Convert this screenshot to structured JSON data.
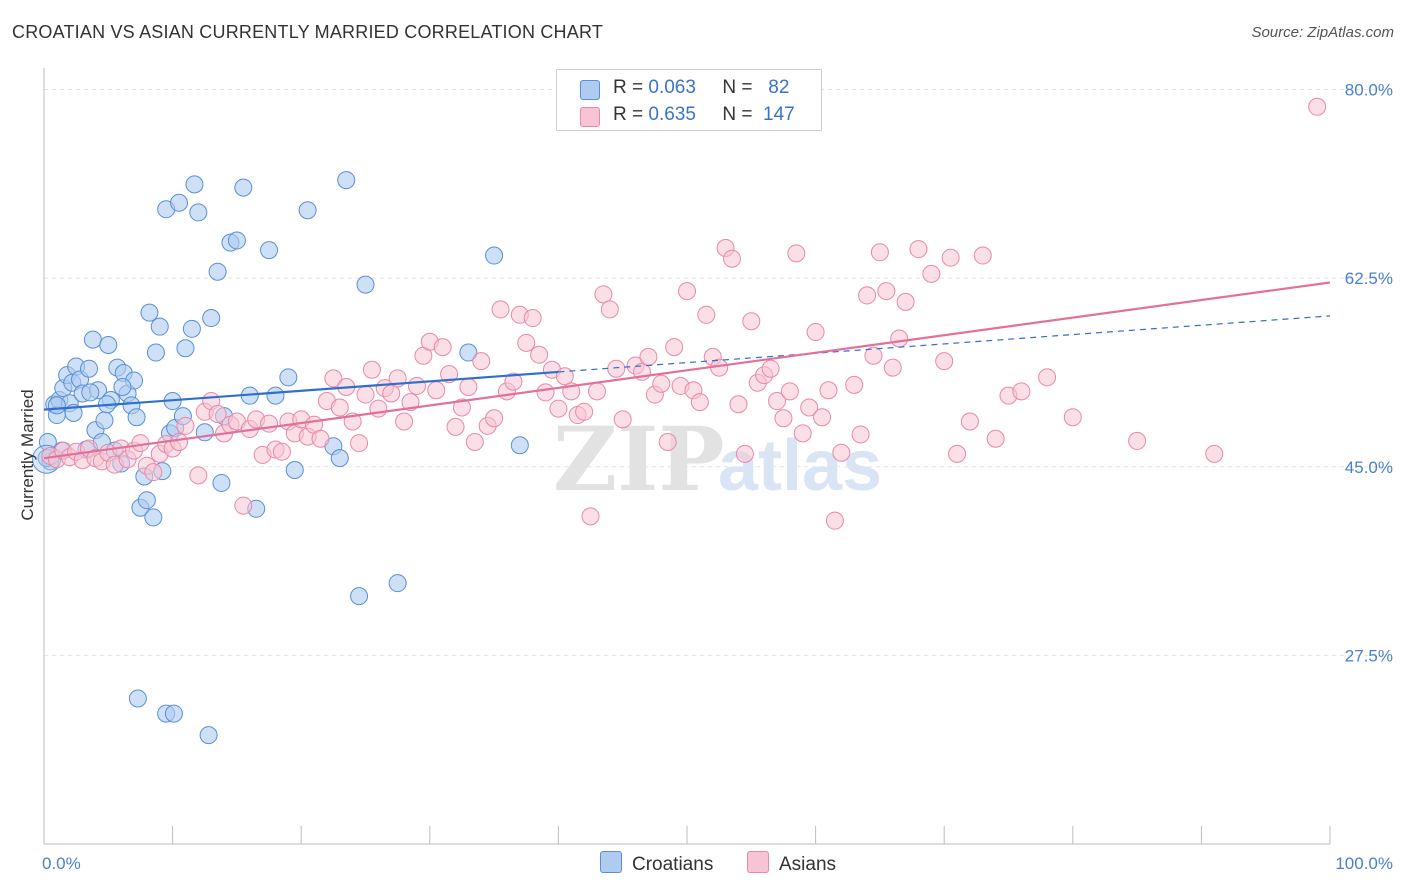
{
  "header": {
    "title": "CROATIAN VS ASIAN CURRENTLY MARRIED CORRELATION CHART",
    "source": "Source: ZipAtlas.com"
  },
  "legend": {
    "rows": [
      {
        "r_label": "R =",
        "r_value": "0.063",
        "n_label": "N =",
        "n_value": "82"
      },
      {
        "r_label": "R =",
        "r_value": "0.635",
        "n_label": "N =",
        "n_value": "147"
      }
    ],
    "bottom": [
      "Croatians",
      "Asians"
    ]
  },
  "colors": {
    "croatian_fill": "#aecbf0",
    "croatian_stroke": "#5b8fd6",
    "croatian_line": "#2f6fce",
    "asian_fill": "#f6c4d4",
    "asian_stroke": "#e889a8",
    "asian_line": "#e2709a",
    "tick_text": "#4a7fd0",
    "grid": "#e3e3e3"
  },
  "chart_data": {
    "type": "scatter",
    "title": "CROATIAN VS ASIAN CURRENTLY MARRIED CORRELATION CHART",
    "xlabel": "",
    "ylabel": "Currently Married",
    "xlim": [
      0,
      100
    ],
    "ylim": [
      10,
      82
    ],
    "x_tick_labels": [
      "0.0%",
      "100.0%"
    ],
    "y_ticks": [
      27.5,
      45.0,
      62.5,
      80.0
    ],
    "y_tick_labels": [
      "27.5%",
      "45.0%",
      "62.5%",
      "80.0%"
    ],
    "watermark": "ZIPatlas",
    "series": [
      {
        "name": "Croatians",
        "R": 0.063,
        "N": 82,
        "trend": {
          "x0": 0,
          "y0": 50.3,
          "x1": 40,
          "y1": 53.8,
          "dashed_to_x": 100,
          "dashed_to_y": 59.0
        },
        "points": [
          [
            0.3,
            47.3
          ],
          [
            0.5,
            45.5
          ],
          [
            0.8,
            50.8
          ],
          [
            1,
            49.8
          ],
          [
            1.2,
            51.2
          ],
          [
            1.5,
            52.3
          ],
          [
            1.8,
            53.5
          ],
          [
            2,
            50.9
          ],
          [
            2.2,
            52.8
          ],
          [
            2.5,
            54.3
          ],
          [
            2.8,
            53.1
          ],
          [
            3,
            51.8
          ],
          [
            3.3,
            46.6
          ],
          [
            3.5,
            54.1
          ],
          [
            3.8,
            56.8
          ],
          [
            4,
            48.4
          ],
          [
            4.2,
            52.1
          ],
          [
            4.5,
            47.3
          ],
          [
            4.7,
            49.3
          ],
          [
            5,
            56.3
          ],
          [
            5.2,
            51.2
          ],
          [
            5.5,
            46.5
          ],
          [
            5.7,
            54.2
          ],
          [
            6,
            45.3
          ],
          [
            6.2,
            53.7
          ],
          [
            6.5,
            51.8
          ],
          [
            6.8,
            50.7
          ],
          [
            7,
            53.0
          ],
          [
            7.2,
            49.6
          ],
          [
            7.5,
            41.2
          ],
          [
            7.8,
            44.1
          ],
          [
            8,
            41.9
          ],
          [
            8.2,
            59.3
          ],
          [
            8.5,
            40.3
          ],
          [
            8.7,
            55.6
          ],
          [
            9,
            58.0
          ],
          [
            9.2,
            44.6
          ],
          [
            9.5,
            68.9
          ],
          [
            9.8,
            48.1
          ],
          [
            10,
            51.1
          ],
          [
            10.2,
            48.6
          ],
          [
            10.5,
            69.5
          ],
          [
            10.8,
            49.7
          ],
          [
            11,
            56.0
          ],
          [
            11.5,
            57.8
          ],
          [
            11.7,
            71.2
          ],
          [
            12,
            68.6
          ],
          [
            12.5,
            48.2
          ],
          [
            13,
            58.8
          ],
          [
            13.5,
            63.1
          ],
          [
            13.8,
            43.5
          ],
          [
            14,
            49.7
          ],
          [
            14.5,
            65.8
          ],
          [
            15,
            66.0
          ],
          [
            15.5,
            70.9
          ],
          [
            16,
            51.6
          ],
          [
            16.5,
            41.1
          ],
          [
            17.5,
            65.1
          ],
          [
            18,
            51.6
          ],
          [
            19,
            53.3
          ],
          [
            19.5,
            44.7
          ],
          [
            20.5,
            68.8
          ],
          [
            22.5,
            46.9
          ],
          [
            23,
            45.8
          ],
          [
            23.5,
            71.6
          ],
          [
            24.5,
            33.0
          ],
          [
            25,
            61.9
          ],
          [
            27.5,
            34.2
          ],
          [
            33,
            55.6
          ],
          [
            35,
            64.6
          ],
          [
            37,
            47.0
          ],
          [
            7.3,
            23.5
          ],
          [
            9.5,
            22.1
          ],
          [
            10.1,
            22.1
          ],
          [
            12.8,
            20.1
          ],
          [
            1,
            50.7
          ],
          [
            2.3,
            50.0
          ],
          [
            3.6,
            51.9
          ],
          [
            4.9,
            50.8
          ],
          [
            6.1,
            52.4
          ],
          [
            0.2,
            45.8
          ],
          [
            1.4,
            46.5
          ]
        ]
      },
      {
        "name": "Asians",
        "R": 0.635,
        "N": 147,
        "trend": {
          "x0": 0,
          "y0": 45.8,
          "x1": 100,
          "y1": 62.1
        },
        "points": [
          [
            0.5,
            46.0
          ],
          [
            1,
            45.7
          ],
          [
            1.5,
            46.5
          ],
          [
            2,
            45.9
          ],
          [
            2.5,
            46.4
          ],
          [
            3,
            45.6
          ],
          [
            3.5,
            46.7
          ],
          [
            4,
            45.8
          ],
          [
            4.5,
            45.5
          ],
          [
            5,
            46.3
          ],
          [
            5.5,
            45.2
          ],
          [
            6,
            46.7
          ],
          [
            6.5,
            45.7
          ],
          [
            7,
            46.5
          ],
          [
            7.5,
            47.2
          ],
          [
            8,
            45.1
          ],
          [
            8.5,
            44.5
          ],
          [
            9,
            46.2
          ],
          [
            9.5,
            47.1
          ],
          [
            10,
            46.7
          ],
          [
            10.5,
            47.3
          ],
          [
            11,
            48.8
          ],
          [
            12,
            44.2
          ],
          [
            12.5,
            50.1
          ],
          [
            13,
            51.1
          ],
          [
            13.5,
            49.9
          ],
          [
            14,
            48.1
          ],
          [
            14.5,
            48.9
          ],
          [
            15,
            49.2
          ],
          [
            15.5,
            41.4
          ],
          [
            16,
            48.5
          ],
          [
            16.5,
            49.4
          ],
          [
            17,
            46.1
          ],
          [
            17.5,
            49.0
          ],
          [
            18,
            46.6
          ],
          [
            18.5,
            46.4
          ],
          [
            19,
            49.2
          ],
          [
            19.5,
            48.1
          ],
          [
            20,
            49.4
          ],
          [
            20.5,
            47.8
          ],
          [
            21,
            48.9
          ],
          [
            21.5,
            47.6
          ],
          [
            22,
            51.1
          ],
          [
            22.5,
            53.2
          ],
          [
            23,
            50.5
          ],
          [
            23.5,
            52.4
          ],
          [
            24,
            49.2
          ],
          [
            24.5,
            47.2
          ],
          [
            25,
            51.7
          ],
          [
            25.5,
            54.0
          ],
          [
            26,
            50.4
          ],
          [
            26.5,
            52.3
          ],
          [
            27,
            51.8
          ],
          [
            27.5,
            53.2
          ],
          [
            28,
            49.2
          ],
          [
            28.5,
            51.0
          ],
          [
            29,
            52.5
          ],
          [
            29.5,
            55.3
          ],
          [
            30,
            56.6
          ],
          [
            30.5,
            52.1
          ],
          [
            31,
            56.1
          ],
          [
            31.5,
            53.6
          ],
          [
            32,
            48.7
          ],
          [
            32.5,
            50.5
          ],
          [
            33,
            52.4
          ],
          [
            33.5,
            47.3
          ],
          [
            34,
            54.8
          ],
          [
            34.5,
            48.8
          ],
          [
            35,
            49.5
          ],
          [
            35.5,
            59.6
          ],
          [
            36,
            52.0
          ],
          [
            36.5,
            52.9
          ],
          [
            37,
            59.1
          ],
          [
            37.5,
            56.5
          ],
          [
            38,
            58.8
          ],
          [
            38.5,
            55.4
          ],
          [
            39,
            51.9
          ],
          [
            39.5,
            54.0
          ],
          [
            40,
            50.4
          ],
          [
            40.5,
            53.4
          ],
          [
            41,
            52.0
          ],
          [
            41.5,
            49.8
          ],
          [
            42,
            50.1
          ],
          [
            42.5,
            40.4
          ],
          [
            43,
            52.0
          ],
          [
            43.5,
            61.0
          ],
          [
            44,
            59.6
          ],
          [
            44.5,
            54.1
          ],
          [
            45,
            49.4
          ],
          [
            46,
            54.4
          ],
          [
            46.5,
            53.8
          ],
          [
            47,
            55.2
          ],
          [
            47.5,
            51.7
          ],
          [
            48,
            52.7
          ],
          [
            48.5,
            47.3
          ],
          [
            49,
            56.1
          ],
          [
            49.5,
            52.5
          ],
          [
            50,
            61.3
          ],
          [
            50.5,
            52.1
          ],
          [
            51,
            51.0
          ],
          [
            51.5,
            59.1
          ],
          [
            52,
            55.2
          ],
          [
            52.5,
            54.2
          ],
          [
            53,
            65.3
          ],
          [
            53.5,
            64.3
          ],
          [
            54,
            50.8
          ],
          [
            54.5,
            46.2
          ],
          [
            55,
            58.5
          ],
          [
            55.5,
            52.8
          ],
          [
            56,
            53.5
          ],
          [
            56.5,
            54.1
          ],
          [
            57,
            51.1
          ],
          [
            57.5,
            49.5
          ],
          [
            58,
            52.0
          ],
          [
            58.5,
            64.8
          ],
          [
            59,
            48.1
          ],
          [
            59.5,
            50.5
          ],
          [
            60,
            57.5
          ],
          [
            60.5,
            49.6
          ],
          [
            61,
            52.1
          ],
          [
            61.5,
            40.0
          ],
          [
            62,
            46.3
          ],
          [
            63,
            52.6
          ],
          [
            63.5,
            48.0
          ],
          [
            64,
            60.9
          ],
          [
            64.5,
            55.3
          ],
          [
            65,
            64.9
          ],
          [
            65.5,
            61.3
          ],
          [
            66,
            54.2
          ],
          [
            66.5,
            56.9
          ],
          [
            67,
            60.3
          ],
          [
            68,
            65.2
          ],
          [
            69,
            62.9
          ],
          [
            70,
            54.8
          ],
          [
            70.5,
            64.4
          ],
          [
            71,
            46.2
          ],
          [
            72,
            49.2
          ],
          [
            73,
            64.6
          ],
          [
            74,
            47.6
          ],
          [
            75,
            51.6
          ],
          [
            76,
            52.0
          ],
          [
            78,
            53.3
          ],
          [
            80,
            49.6
          ],
          [
            85,
            47.4
          ],
          [
            91,
            46.2
          ],
          [
            99,
            78.4
          ]
        ]
      }
    ]
  }
}
